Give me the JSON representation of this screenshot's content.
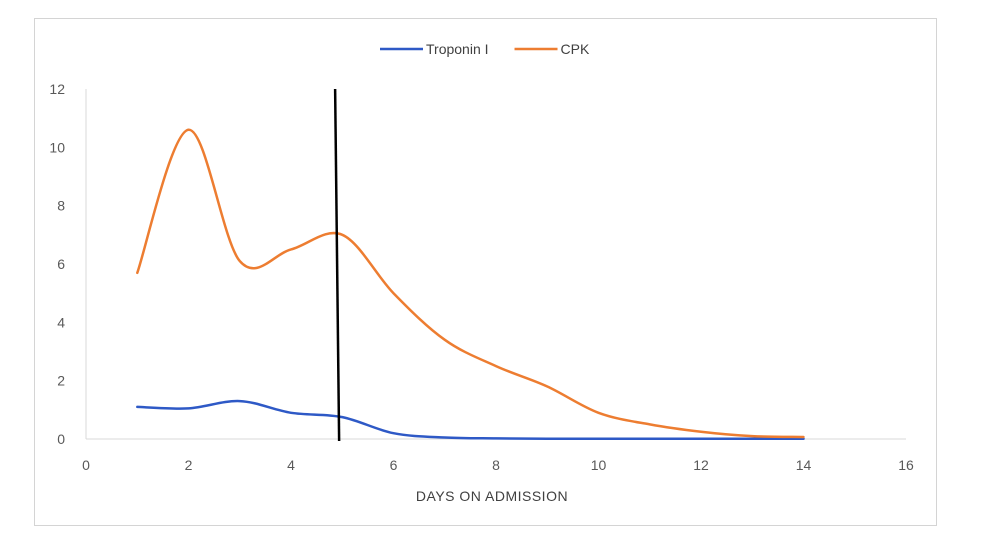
{
  "chart_data": {
    "type": "line",
    "title": "",
    "xlabel": "DAYS ON ADMISSION",
    "ylabel": "",
    "xlim": [
      0,
      16
    ],
    "ylim": [
      0,
      12
    ],
    "x_ticks": [
      0,
      2,
      4,
      6,
      8,
      10,
      12,
      14,
      16
    ],
    "y_ticks": [
      0,
      2,
      4,
      6,
      8,
      10,
      12
    ],
    "grid": false,
    "legend_position": "top",
    "smooth": true,
    "series": [
      {
        "name": "Troponin I",
        "color": "#2e59c6",
        "x": [
          1,
          2,
          3,
          4,
          5,
          6,
          7,
          8,
          9,
          10,
          11,
          12,
          13,
          14
        ],
        "y": [
          1.1,
          1.05,
          1.3,
          0.9,
          0.75,
          0.2,
          0.05,
          0.02,
          0.01,
          0.01,
          0.01,
          0.01,
          0.01,
          0.01
        ]
      },
      {
        "name": "CPK",
        "color": "#ed7d31",
        "x": [
          1,
          2,
          3,
          4,
          5,
          6,
          7,
          8,
          9,
          10,
          11,
          12,
          13,
          14
        ],
        "y": [
          5.7,
          10.6,
          6.1,
          6.5,
          7.0,
          5.0,
          3.4,
          2.5,
          1.8,
          0.9,
          0.5,
          0.25,
          0.1,
          0.07
        ]
      }
    ],
    "annotations": [
      {
        "type": "vertical-line",
        "x": 4.9,
        "color": "#000000"
      }
    ]
  }
}
